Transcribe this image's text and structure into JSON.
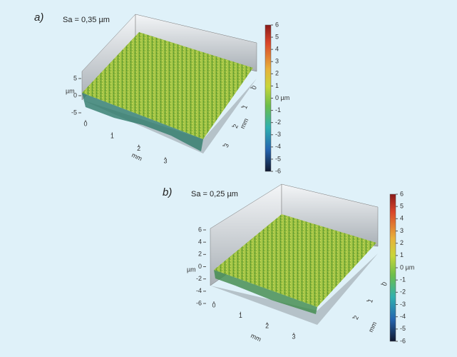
{
  "panels": [
    {
      "label": "a)",
      "sa": "Sa = 0,35 µm",
      "colorbar_ticks": [
        6,
        5,
        4,
        3,
        2,
        1,
        {
          "value": 0,
          "label": "0 µm"
        },
        -1,
        -2,
        -3,
        -4,
        -5,
        -6
      ],
      "z_title": "µm",
      "z_ticks": [
        5,
        0,
        -5
      ],
      "x_title": "mm",
      "x_ticks": [
        0,
        1,
        2,
        3
      ],
      "y_title": "mm",
      "y_ticks": [
        0,
        1,
        2,
        3
      ]
    },
    {
      "label": "b)",
      "sa": "Sa = 0,25 µm",
      "colorbar_ticks": [
        6,
        5,
        4,
        3,
        2,
        1,
        {
          "value": 0,
          "label": "0 µm"
        },
        -1,
        -2,
        -3,
        -4,
        -5,
        -6
      ],
      "z_title": "µm",
      "z_ticks": [
        6,
        4,
        2,
        0,
        -2,
        -4,
        -6
      ],
      "x_title": "mm",
      "x_ticks": [
        0,
        1,
        2,
        3
      ],
      "y_title": "mm",
      "y_ticks": [
        0,
        1,
        2
      ]
    }
  ]
}
